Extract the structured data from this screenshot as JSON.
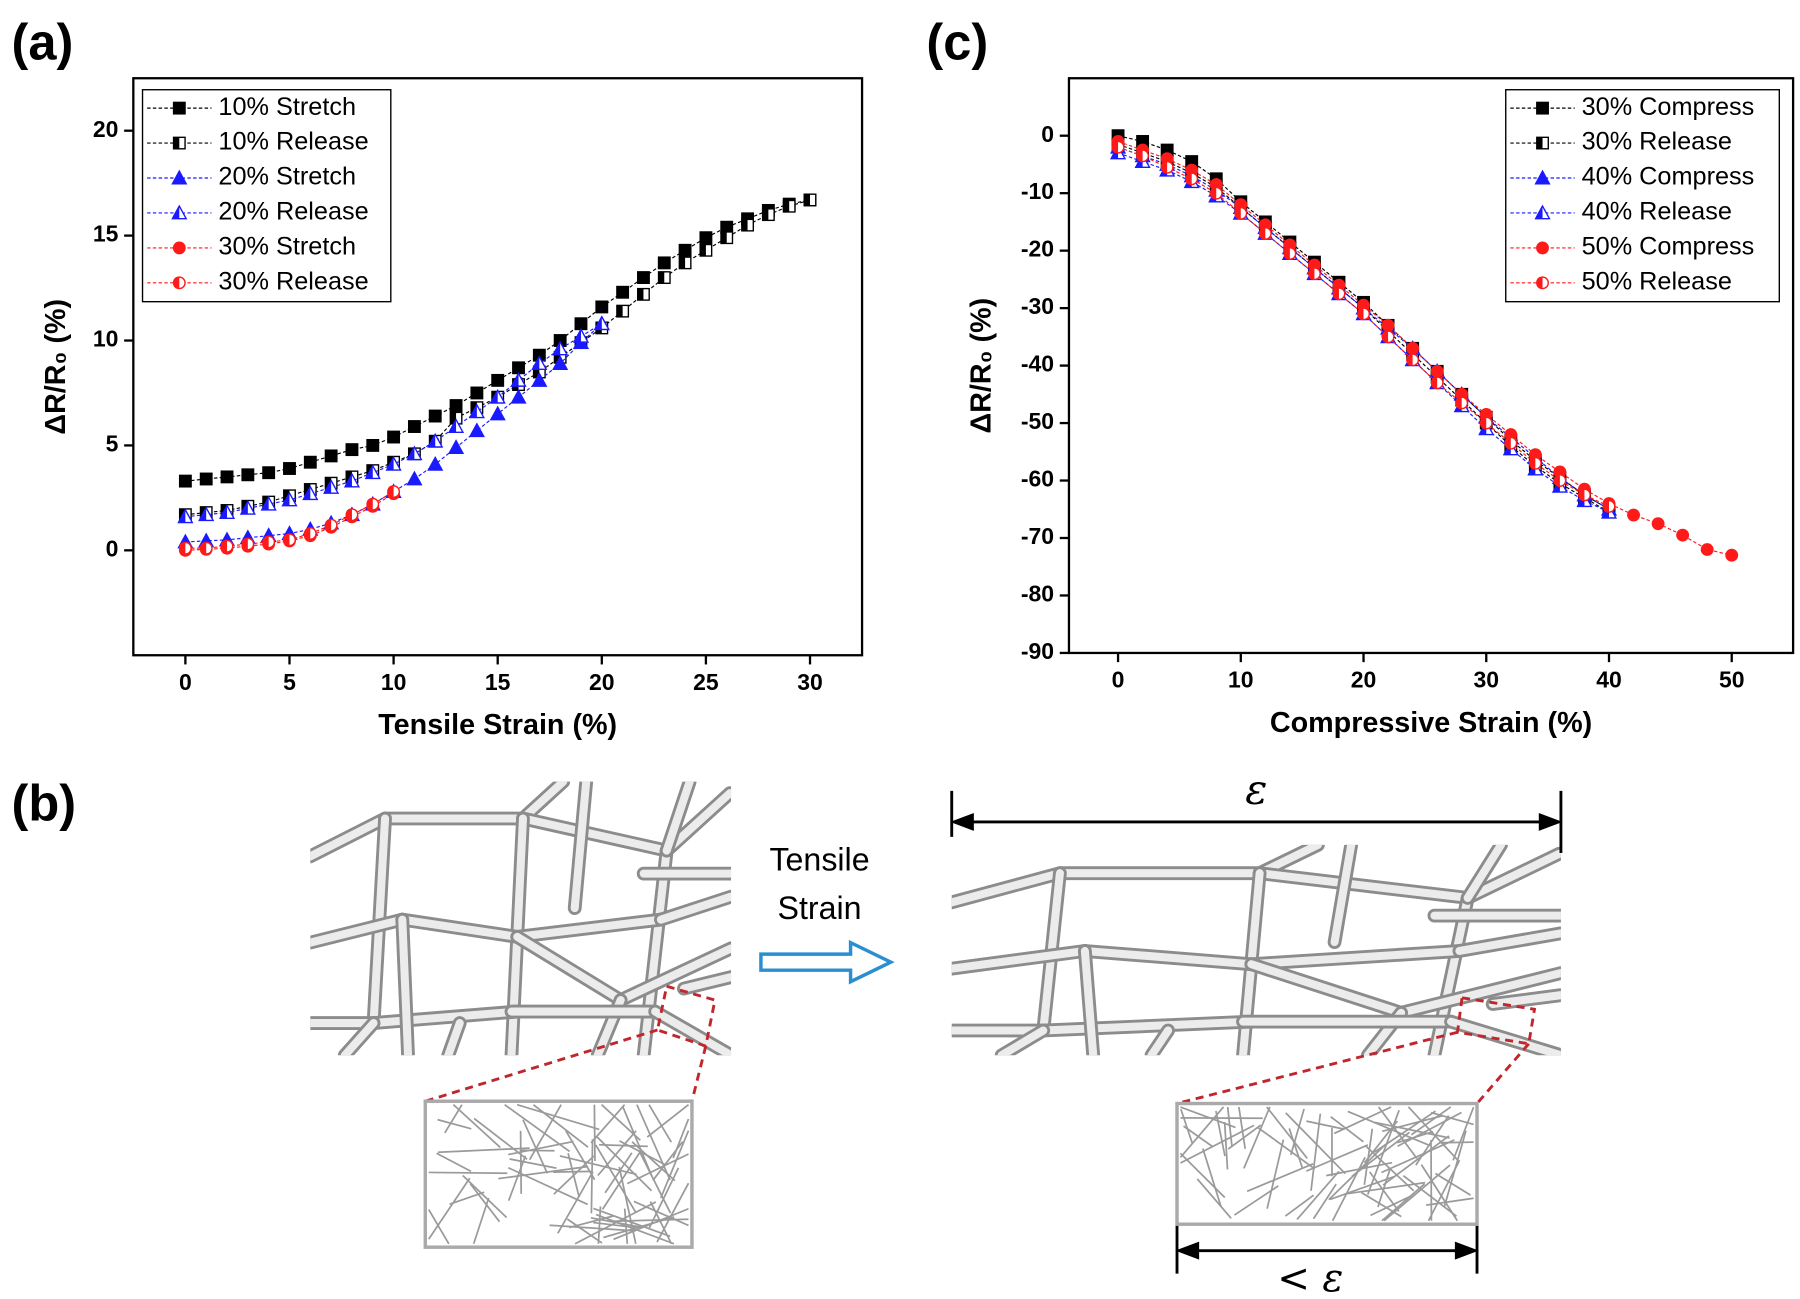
{
  "chart_data": [
    {
      "type": "line",
      "label": "(a)",
      "xlabel": "Tensile Strain (%)",
      "ylabel": "ΔR/R₀ (%)",
      "xlim": [
        -2.5,
        32.5
      ],
      "xticks": [
        0,
        5,
        10,
        15,
        20,
        25,
        30
      ],
      "ylim": [
        -5,
        22.5
      ],
      "yticks": [
        0,
        5,
        10,
        15,
        20
      ],
      "legend": "upper left",
      "series": [
        {
          "name": "10% Stretch",
          "color": "#000000",
          "marker": "square",
          "fill": "full",
          "x": [
            0,
            1,
            2,
            3,
            4,
            5,
            6,
            7,
            8,
            9,
            10,
            11,
            12,
            13,
            14,
            15,
            16,
            17,
            18,
            19,
            20,
            21,
            22,
            23,
            24,
            25,
            26,
            27,
            28,
            29,
            30
          ],
          "values": [
            3.3,
            3.4,
            3.5,
            3.6,
            3.7,
            3.9,
            4.2,
            4.5,
            4.8,
            5.0,
            5.4,
            5.9,
            6.4,
            6.9,
            7.5,
            8.1,
            8.7,
            9.3,
            10.0,
            10.8,
            11.6,
            12.3,
            13.0,
            13.7,
            14.3,
            14.9,
            15.4,
            15.8,
            16.2,
            16.5,
            16.7
          ]
        },
        {
          "name": "10% Release",
          "color": "#000000",
          "marker": "square",
          "fill": "half",
          "x": [
            0,
            1,
            2,
            3,
            4,
            5,
            6,
            7,
            8,
            9,
            10,
            11,
            12,
            13,
            14,
            15,
            16,
            17,
            18,
            19,
            20,
            21,
            22,
            23,
            24,
            25,
            26,
            27,
            28,
            29,
            30
          ],
          "values": [
            1.7,
            1.8,
            1.9,
            2.1,
            2.3,
            2.6,
            2.9,
            3.2,
            3.5,
            3.8,
            4.2,
            4.6,
            5.2,
            6.3,
            6.8,
            7.3,
            7.9,
            8.5,
            9.2,
            9.9,
            10.6,
            11.4,
            12.2,
            13.0,
            13.7,
            14.3,
            14.9,
            15.5,
            16.0,
            16.4,
            16.7
          ]
        },
        {
          "name": "20% Stretch",
          "color": "#1a1aff",
          "marker": "triangle",
          "fill": "full",
          "x": [
            0,
            1,
            2,
            3,
            4,
            5,
            6,
            7,
            8,
            9,
            10,
            11,
            12,
            13,
            14,
            15,
            16,
            17,
            18,
            19,
            20
          ],
          "values": [
            0.4,
            0.45,
            0.5,
            0.6,
            0.7,
            0.8,
            1.0,
            1.3,
            1.7,
            2.2,
            2.8,
            3.4,
            4.1,
            4.9,
            5.7,
            6.5,
            7.3,
            8.1,
            8.9,
            9.9,
            10.8
          ]
        },
        {
          "name": "20% Release",
          "color": "#1a1aff",
          "marker": "triangle",
          "fill": "half",
          "x": [
            0,
            1,
            2,
            3,
            4,
            5,
            6,
            7,
            8,
            9,
            10,
            11,
            12,
            13,
            14,
            15,
            16,
            17,
            18,
            19,
            20
          ],
          "values": [
            1.6,
            1.7,
            1.8,
            2.0,
            2.2,
            2.4,
            2.7,
            3.0,
            3.3,
            3.7,
            4.1,
            4.6,
            5.2,
            5.9,
            6.6,
            7.3,
            8.1,
            8.9,
            9.6,
            10.2,
            10.8
          ]
        },
        {
          "name": "30% Stretch",
          "color": "#ff1a1a",
          "marker": "circle",
          "fill": "full",
          "x": [
            0,
            1,
            2,
            3,
            4,
            5,
            6,
            7,
            8,
            9,
            10
          ],
          "values": [
            0,
            0.05,
            0.1,
            0.2,
            0.3,
            0.45,
            0.7,
            1.1,
            1.6,
            2.1,
            2.7
          ]
        },
        {
          "name": "30% Release",
          "color": "#ff1a1a",
          "marker": "circle",
          "fill": "half",
          "x": [
            0,
            1,
            2,
            3,
            4,
            5,
            6,
            7,
            8,
            9,
            10
          ],
          "values": [
            0.1,
            0.1,
            0.2,
            0.3,
            0.4,
            0.5,
            0.8,
            1.2,
            1.7,
            2.2,
            2.8
          ]
        }
      ]
    },
    {
      "type": "line",
      "label": "(c)",
      "xlabel": "Compressive Strain (%)",
      "ylabel": "ΔR/R₀ (%)",
      "xlim": [
        -4,
        55
      ],
      "xticks": [
        0,
        10,
        20,
        30,
        40,
        50
      ],
      "ylim": [
        -90,
        10
      ],
      "yticks": [
        0,
        -10,
        -20,
        -30,
        -40,
        -50,
        -60,
        -70,
        -80,
        -90
      ],
      "legend": "upper right",
      "series": [
        {
          "name": "30% Compress",
          "color": "#000000",
          "marker": "square",
          "fill": "full",
          "x": [
            0,
            2,
            4,
            6,
            8,
            10,
            12,
            14,
            16,
            18,
            20,
            22,
            24,
            26,
            28,
            30,
            32,
            34,
            36,
            38,
            40
          ],
          "values": [
            0,
            -1,
            -2.5,
            -4.5,
            -7.5,
            -11.5,
            -15,
            -18.5,
            -22,
            -25.5,
            -29,
            -33,
            -37,
            -41,
            -45,
            -49,
            -53,
            -56.5,
            -59.5,
            -62.5,
            -65
          ]
        },
        {
          "name": "30% Release",
          "color": "#000000",
          "marker": "square",
          "fill": "half",
          "x": [
            0,
            2,
            4,
            6,
            8,
            10,
            12,
            14,
            16,
            18,
            20,
            22,
            24,
            26,
            28,
            30,
            32,
            34,
            36,
            38,
            40
          ],
          "values": [
            -1.5,
            -3,
            -4.5,
            -6.5,
            -9,
            -12.5,
            -16,
            -19.5,
            -23,
            -26.5,
            -30,
            -34,
            -38,
            -42,
            -46,
            -50,
            -54,
            -57.5,
            -60.5,
            -63,
            -65.5
          ]
        },
        {
          "name": "40% Compress",
          "color": "#1a1aff",
          "marker": "triangle",
          "fill": "full",
          "x": [
            0,
            2,
            4,
            6,
            8,
            10,
            12,
            14,
            16,
            18,
            20,
            22,
            24,
            26,
            28,
            30,
            32,
            34,
            36,
            38,
            40
          ],
          "values": [
            -2,
            -3.5,
            -5,
            -7,
            -9.5,
            -12.5,
            -16,
            -19.5,
            -23,
            -26.5,
            -30,
            -33.5,
            -37,
            -41,
            -45,
            -49,
            -52.5,
            -56,
            -59.5,
            -62.5,
            -65
          ]
        },
        {
          "name": "40% Release",
          "color": "#1a1aff",
          "marker": "triangle",
          "fill": "half",
          "x": [
            0,
            2,
            4,
            6,
            8,
            10,
            12,
            14,
            16,
            18,
            20,
            22,
            24,
            26,
            28,
            30,
            32,
            34,
            36,
            38,
            40
          ],
          "values": [
            -3,
            -4.5,
            -6,
            -8,
            -10.5,
            -13.5,
            -17,
            -20.5,
            -24,
            -27.5,
            -31,
            -35,
            -39,
            -43,
            -47,
            -51,
            -54.5,
            -58,
            -61,
            -63.5,
            -65.5
          ]
        },
        {
          "name": "50% Compress",
          "color": "#ff1a1a",
          "marker": "circle",
          "fill": "full",
          "x": [
            0,
            2,
            4,
            6,
            8,
            10,
            12,
            14,
            16,
            18,
            20,
            22,
            24,
            26,
            28,
            30,
            32,
            34,
            36,
            38,
            40,
            42,
            44,
            46,
            48,
            50
          ],
          "values": [
            -1,
            -2.5,
            -4,
            -6,
            -8.5,
            -12,
            -15.5,
            -19,
            -22.5,
            -26,
            -29.5,
            -33,
            -37,
            -41,
            -45,
            -48.5,
            -52,
            -55.5,
            -58.5,
            -61.5,
            -64,
            -66,
            -67.5,
            -69.5,
            -72,
            -73
          ]
        },
        {
          "name": "50% Release",
          "color": "#ff1a1a",
          "marker": "circle",
          "fill": "half",
          "x": [
            0,
            2,
            4,
            6,
            8,
            10,
            12,
            14,
            16,
            18,
            20,
            22,
            24,
            26,
            28,
            30,
            32,
            34,
            36,
            38,
            40
          ],
          "values": [
            -2,
            -3.5,
            -5.5,
            -7.5,
            -10,
            -13.5,
            -17,
            -20.5,
            -24,
            -27.5,
            -31,
            -35,
            -39,
            -43,
            -46.5,
            -50,
            -53.5,
            -57,
            -60,
            -62.5,
            -64.5
          ]
        }
      ]
    }
  ],
  "diagram": {
    "label": "(b)",
    "arrow_label_line1": "Tensile",
    "arrow_label_line2": "Strain",
    "top_label": "ε",
    "bottom_label": "< ε"
  }
}
